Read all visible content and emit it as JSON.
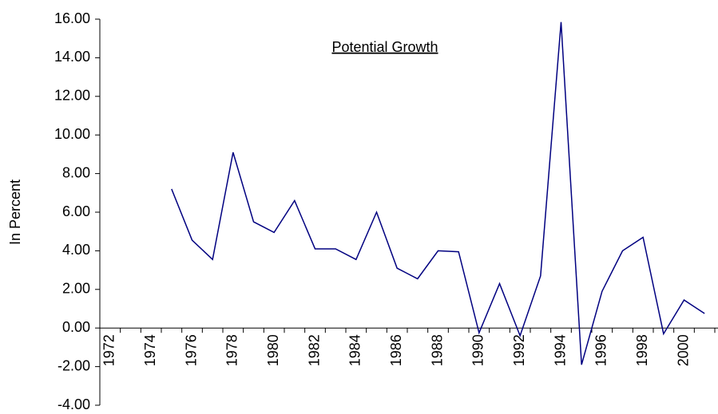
{
  "chart_data": {
    "type": "line",
    "title": "Potential Growth",
    "y_label": "In Percent",
    "categories": [
      "1972",
      null,
      "1974",
      null,
      "1976",
      null,
      "1978",
      null,
      "1980",
      null,
      "1982",
      null,
      "1984",
      null,
      "1986",
      null,
      "1988",
      null,
      "1990",
      null,
      "1992",
      null,
      "1994",
      null,
      "1996",
      null,
      "1998",
      null,
      "2000",
      null
    ],
    "values": [
      null,
      null,
      null,
      7.2,
      4.55,
      3.55,
      9.1,
      5.5,
      4.95,
      6.6,
      4.1,
      4.1,
      3.55,
      6.0,
      3.1,
      2.55,
      4.0,
      3.95,
      -0.25,
      2.3,
      -0.4,
      2.7,
      15.85,
      -1.9,
      1.9,
      4.0,
      4.7,
      -0.3,
      1.45,
      0.75
    ],
    "color": "#000080",
    "ylim": [
      -4,
      16
    ],
    "yticks": [
      {
        "value": -4,
        "label": "-4.00"
      },
      {
        "value": -2,
        "label": "-2.00"
      },
      {
        "value": 0,
        "label": "0.00"
      },
      {
        "value": 2,
        "label": "2.00"
      },
      {
        "value": 4,
        "label": "4.00"
      },
      {
        "value": 6,
        "label": "6.00"
      },
      {
        "value": 8,
        "label": "8.00"
      },
      {
        "value": 10,
        "label": "10.00"
      },
      {
        "value": 12,
        "label": "12.00"
      },
      {
        "value": 14,
        "label": "14.00"
      },
      {
        "value": 16,
        "label": "16.00"
      }
    ]
  }
}
